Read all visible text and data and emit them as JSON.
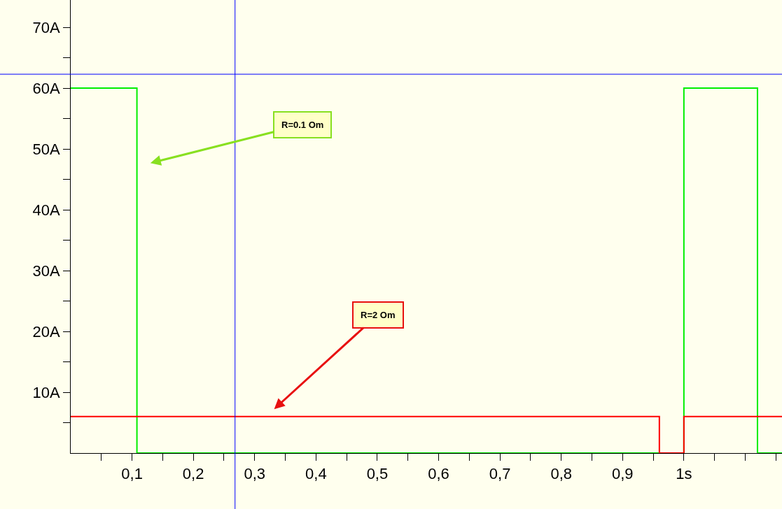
{
  "chart_data": {
    "type": "step",
    "series": [
      {
        "color": "#00ee00",
        "x": [
          0,
          0.108,
          1.0,
          1.12,
          1.16
        ],
        "values": [
          60,
          0,
          60,
          0,
          0
        ]
      },
      {
        "color": "#ff0000",
        "x": [
          0,
          0.96,
          1.0,
          1.16
        ],
        "values": [
          6,
          0,
          6,
          6
        ]
      }
    ],
    "xlim": [
      0,
      1.16
    ],
    "ylim": [
      0,
      74.5
    ],
    "xticks": [
      {
        "value": 0.05,
        "label": null
      },
      {
        "value": 0.1,
        "label": "0,1"
      },
      {
        "value": 0.15,
        "label": null
      },
      {
        "value": 0.2,
        "label": "0,2"
      },
      {
        "value": 0.25,
        "label": null
      },
      {
        "value": 0.3,
        "label": "0,3"
      },
      {
        "value": 0.35,
        "label": null
      },
      {
        "value": 0.4,
        "label": "0,4"
      },
      {
        "value": 0.45,
        "label": null
      },
      {
        "value": 0.5,
        "label": "0,5"
      },
      {
        "value": 0.55,
        "label": null
      },
      {
        "value": 0.6,
        "label": "0,6"
      },
      {
        "value": 0.65,
        "label": null
      },
      {
        "value": 0.7,
        "label": "0,7"
      },
      {
        "value": 0.75,
        "label": null
      },
      {
        "value": 0.8,
        "label": "0,8"
      },
      {
        "value": 0.85,
        "label": null
      },
      {
        "value": 0.9,
        "label": "0,9"
      },
      {
        "value": 0.95,
        "label": null
      },
      {
        "value": 1.0,
        "label": "1s"
      },
      {
        "value": 1.05,
        "label": null
      },
      {
        "value": 1.1,
        "label": null
      },
      {
        "value": 1.15,
        "label": null
      }
    ],
    "yticks": [
      {
        "value": 5,
        "label": null
      },
      {
        "value": 10,
        "label": "10A"
      },
      {
        "value": 15,
        "label": null
      },
      {
        "value": 20,
        "label": "20A"
      },
      {
        "value": 25,
        "label": null
      },
      {
        "value": 30,
        "label": "30A"
      },
      {
        "value": 35,
        "label": null
      },
      {
        "value": 40,
        "label": "40A"
      },
      {
        "value": 45,
        "label": null
      },
      {
        "value": 50,
        "label": "50A"
      },
      {
        "value": 55,
        "label": null
      },
      {
        "value": 60,
        "label": "60A"
      },
      {
        "value": 65,
        "label": null
      },
      {
        "value": 70,
        "label": "70A"
      }
    ],
    "ref_lines": [
      {
        "axis": "x",
        "value": 0.268,
        "color": "#0000ff"
      },
      {
        "axis": "y",
        "value": 62.3,
        "color": "#0000ff"
      }
    ],
    "annotations": [
      "R=0.1 Om",
      "R=2 Om"
    ],
    "line_style": "solid"
  }
}
